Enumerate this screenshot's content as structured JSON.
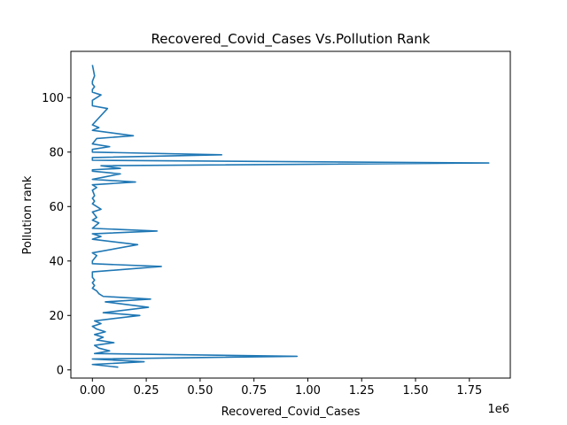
{
  "chart_data": {
    "type": "line",
    "title": "Recovered_Covid_Cases Vs.Pollution Rank",
    "xlabel": "Recovered_Covid_Cases",
    "ylabel": "Pollution rank",
    "x_scale_label": "1e6",
    "xlim": [
      -100000,
      1940000
    ],
    "ylim": [
      -3,
      117
    ],
    "x_ticks": [
      0,
      250000,
      500000,
      750000,
      1000000,
      1250000,
      1500000,
      1750000
    ],
    "x_tick_labels": [
      "0.00",
      "0.25",
      "0.50",
      "0.75",
      "1.00",
      "1.25",
      "1.50",
      "1.75"
    ],
    "y_ticks": [
      0,
      20,
      40,
      60,
      80,
      100
    ],
    "y_tick_labels": [
      "0",
      "20",
      "40",
      "60",
      "80",
      "100"
    ],
    "grid": false,
    "legend": "none",
    "line_color": "#1f77b4",
    "series": [
      {
        "x": [
          120000,
          0,
          240000,
          0,
          950000,
          10000,
          80000,
          30000,
          10000,
          100000,
          20000,
          50000,
          10000,
          60000,
          20000,
          0,
          40000,
          10000,
          220000,
          50000,
          260000,
          60000,
          270000,
          50000,
          30000,
          20000,
          0,
          10000,
          0,
          10000,
          0,
          0,
          320000,
          0,
          0,
          20000,
          0,
          210000,
          0,
          40000,
          0,
          300000,
          0,
          30000,
          0,
          20000,
          0,
          40000,
          0,
          10000,
          0,
          10000,
          0,
          20000,
          0,
          200000,
          0,
          130000,
          0,
          0,
          130000,
          40000,
          1840000,
          0,
          0,
          600000,
          0,
          0,
          80000,
          0,
          20000,
          190000,
          0,
          30000,
          0,
          70000,
          0,
          0,
          40000,
          0,
          0,
          10000,
          0,
          0,
          10000,
          0
        ],
        "y": [
          1,
          2,
          3,
          4,
          5,
          6,
          7,
          8,
          9,
          10,
          11,
          12,
          13,
          14,
          15,
          16,
          17,
          18,
          20,
          21,
          23,
          25,
          26,
          27,
          28,
          29,
          30,
          31,
          32,
          33,
          34,
          36,
          38,
          39,
          40,
          42,
          43,
          46,
          48,
          49,
          50,
          51,
          52,
          54,
          55,
          56,
          58,
          59,
          61,
          62,
          63,
          64,
          66,
          67,
          68,
          69,
          70,
          72,
          73,
          73.5,
          74,
          75,
          76,
          77,
          78,
          79,
          80,
          81,
          82,
          83,
          85,
          86,
          88,
          89,
          90,
          96,
          97,
          99,
          101,
          102,
          103,
          104,
          105,
          106,
          108,
          112
        ]
      }
    ]
  }
}
